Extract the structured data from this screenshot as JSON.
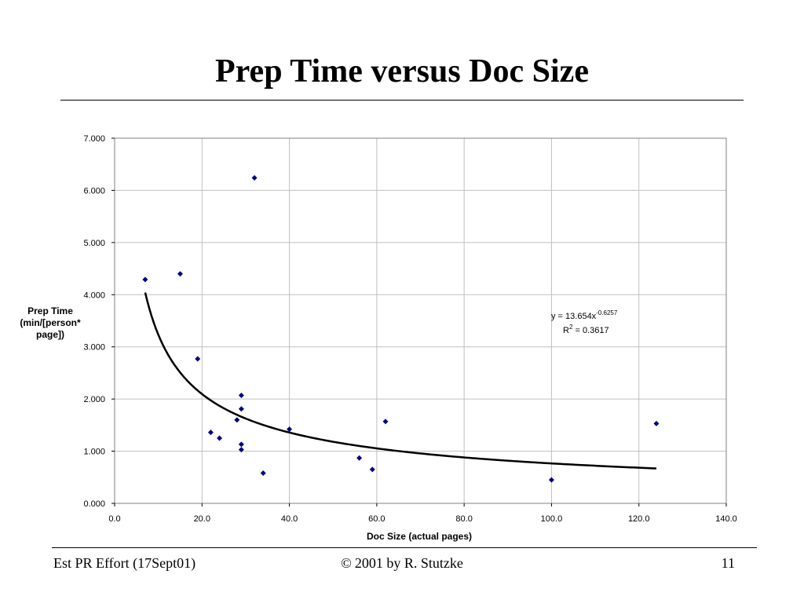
{
  "slide": {
    "title": "Prep Time versus Doc Size"
  },
  "footer": {
    "left": "Est PR Effort (17Sept01)",
    "copyright_symbol": "©",
    "center": "2001 by R. Stutzke",
    "page_number": "11"
  },
  "chart_data": {
    "type": "scatter",
    "title": "",
    "xlabel": "Doc Size (actual pages)",
    "ylabel_lines": [
      "Prep Time",
      "(min/[person*",
      "page])"
    ],
    "xlim": [
      0,
      140
    ],
    "ylim": [
      0,
      7
    ],
    "x_ticks": [
      "0.0",
      "20.0",
      "40.0",
      "60.0",
      "80.0",
      "100.0",
      "120.0",
      "140.0"
    ],
    "y_ticks": [
      "0.000",
      "1.000",
      "2.000",
      "3.000",
      "4.000",
      "5.000",
      "6.000",
      "7.000"
    ],
    "grid": true,
    "marker_color": "#000080",
    "series": [
      {
        "x": [
          7,
          15,
          19,
          22,
          24,
          28,
          29,
          29,
          29,
          29,
          32,
          34,
          40,
          56,
          59,
          62,
          100,
          124
        ],
        "y": [
          4.29,
          4.4,
          2.77,
          1.36,
          1.25,
          1.6,
          2.07,
          1.81,
          1.13,
          1.03,
          6.24,
          0.58,
          1.42,
          0.87,
          0.65,
          1.57,
          0.45,
          1.53
        ]
      }
    ],
    "trendline": {
      "type": "power",
      "coefficient": 13.654,
      "exponent": -0.6257,
      "x_range": [
        7,
        124
      ],
      "color": "#000000"
    },
    "equation_label": {
      "prefix": "y = 13.654x",
      "exponent": "-0.6257",
      "r_prefix": "R",
      "r_power": "2",
      "r_value": " = 0.3617"
    }
  }
}
